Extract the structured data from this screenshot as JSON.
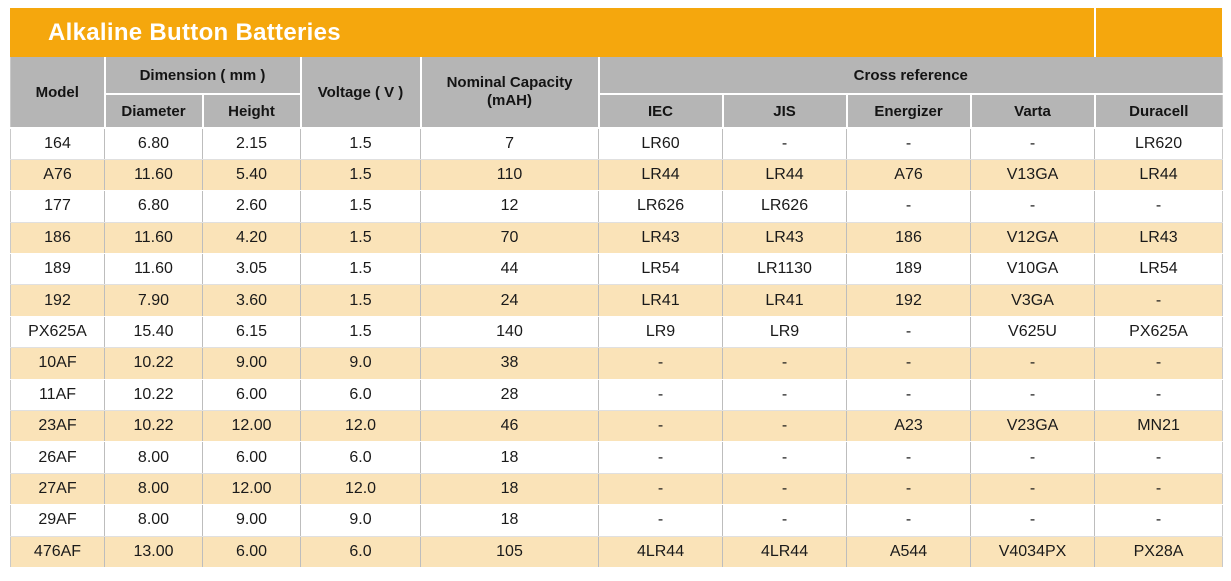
{
  "title": "Alkaline Button Batteries",
  "colors": {
    "brand_orange": "#F5A70D",
    "header_gray": "#B5B5B5",
    "row_stripe_peach": "#FAE3B8",
    "row_plain_white": "#FFFFFF",
    "grid_line": "#BDBDBD",
    "title_text": "#FFFFFF",
    "body_text": "#1A1A1A"
  },
  "table": {
    "header": {
      "model": "Model",
      "dimension_group": "Dimension ( mm )",
      "diameter": "Diameter",
      "height": "Height",
      "voltage": "Voltage ( V )",
      "nominal_capacity": {
        "line1": "Nominal Capacity",
        "line2": "(mAH)"
      },
      "cross_reference_group": "Cross reference",
      "iec": "IEC",
      "jis": "JIS",
      "energizer": "Energizer",
      "varta": "Varta",
      "duracell": "Duracell"
    },
    "rows": [
      [
        "164",
        "6.80",
        "2.15",
        "1.5",
        "7",
        "LR60",
        "-",
        "-",
        "-",
        "LR620"
      ],
      [
        "A76",
        "11.60",
        "5.40",
        "1.5",
        "110",
        "LR44",
        "LR44",
        "A76",
        "V13GA",
        "LR44"
      ],
      [
        "177",
        "6.80",
        "2.60",
        "1.5",
        "12",
        "LR626",
        "LR626",
        "-",
        "-",
        "-"
      ],
      [
        "186",
        "11.60",
        "4.20",
        "1.5",
        "70",
        "LR43",
        "LR43",
        "186",
        "V12GA",
        "LR43"
      ],
      [
        "189",
        "11.60",
        "3.05",
        "1.5",
        "44",
        "LR54",
        "LR1130",
        "189",
        "V10GA",
        "LR54"
      ],
      [
        "192",
        "7.90",
        "3.60",
        "1.5",
        "24",
        "LR41",
        "LR41",
        "192",
        "V3GA",
        "-"
      ],
      [
        "PX625A",
        "15.40",
        "6.15",
        "1.5",
        "140",
        "LR9",
        "LR9",
        "-",
        "V625U",
        "PX625A"
      ],
      [
        "10AF",
        "10.22",
        "9.00",
        "9.0",
        "38",
        "-",
        "-",
        "-",
        "-",
        "-"
      ],
      [
        "11AF",
        "10.22",
        "6.00",
        "6.0",
        "28",
        "-",
        "-",
        "-",
        "-",
        "-"
      ],
      [
        "23AF",
        "10.22",
        "12.00",
        "12.0",
        "46",
        "-",
        "-",
        "A23",
        "V23GA",
        "MN21"
      ],
      [
        "26AF",
        "8.00",
        "6.00",
        "6.0",
        "18",
        "-",
        "-",
        "-",
        "-",
        "-"
      ],
      [
        "27AF",
        "8.00",
        "12.00",
        "12.0",
        "18",
        "-",
        "-",
        "-",
        "-",
        "-"
      ],
      [
        "29AF",
        "8.00",
        "9.00",
        "9.0",
        "18",
        "-",
        "-",
        "-",
        "-",
        "-"
      ],
      [
        "476AF",
        "13.00",
        "6.00",
        "6.0",
        "105",
        "4LR44",
        "4LR44",
        "A544",
        "V4034PX",
        "PX28A"
      ]
    ]
  }
}
